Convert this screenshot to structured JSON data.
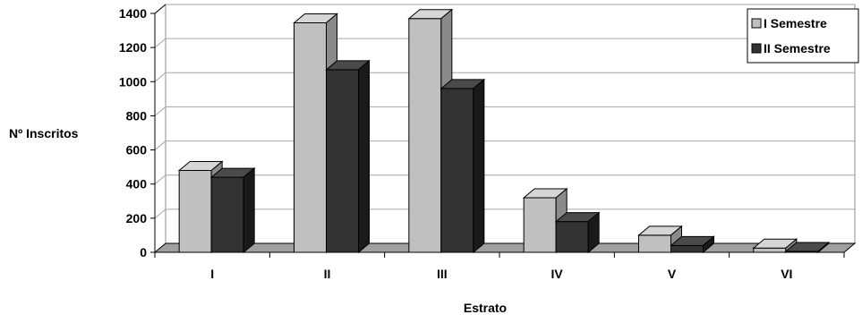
{
  "chart_data": {
    "type": "bar",
    "categories": [
      "I",
      "II",
      "III",
      "IV",
      "V",
      "VI"
    ],
    "series": [
      {
        "name": "I Semestre",
        "values": [
          480,
          1345,
          1370,
          320,
          100,
          25
        ]
      },
      {
        "name": "II Semestre",
        "values": [
          440,
          1070,
          960,
          180,
          40,
          5
        ]
      }
    ],
    "xlabel": "Estrato",
    "ylabel": "Nº Inscritos",
    "ylim": [
      0,
      1400
    ],
    "yticks": [
      "0",
      "200",
      "400",
      "600",
      "800",
      "1000",
      "1200",
      "1400"
    ],
    "grid": true,
    "legend_position": "top-right",
    "colors": {
      "series1_front": "#c0c0c0",
      "series1_top": "#d6d6d6",
      "series1_side": "#8a8a8a",
      "series2_front": "#333333",
      "series2_top": "#4a4a4a",
      "series2_side": "#1a1a1a",
      "floor": "#a0a0a0",
      "grid": "#a6a6a6"
    }
  }
}
